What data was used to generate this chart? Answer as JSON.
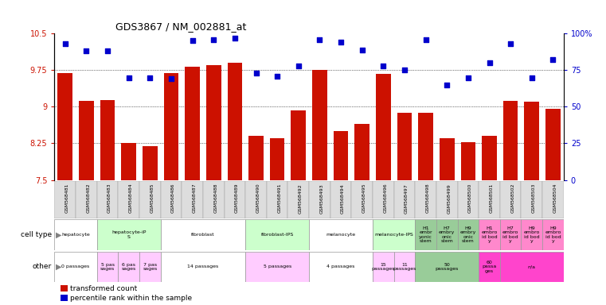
{
  "title": "GDS3867 / NM_002881_at",
  "gsm_labels": [
    "GSM568481",
    "GSM568482",
    "GSM568483",
    "GSM568484",
    "GSM568485",
    "GSM568486",
    "GSM568487",
    "GSM568488",
    "GSM568489",
    "GSM568490",
    "GSM568491",
    "GSM568492",
    "GSM568493",
    "GSM568494",
    "GSM568495",
    "GSM568496",
    "GSM568497",
    "GSM568498",
    "GSM568499",
    "GSM568500",
    "GSM568501",
    "GSM568502",
    "GSM568503",
    "GSM568504"
  ],
  "bar_values": [
    9.69,
    9.12,
    9.14,
    8.26,
    8.19,
    9.69,
    9.82,
    9.86,
    9.9,
    8.4,
    8.36,
    8.93,
    9.75,
    8.5,
    8.65,
    9.68,
    8.87,
    8.87,
    8.36,
    8.28,
    8.4,
    9.12,
    9.11,
    8.95
  ],
  "dot_values_pct": [
    93,
    88,
    88,
    70,
    70,
    69,
    95,
    96,
    97,
    73,
    71,
    78,
    96,
    94,
    89,
    78,
    75,
    96,
    65,
    70,
    80,
    93,
    70,
    82
  ],
  "ylim": [
    7.5,
    10.5
  ],
  "yticks": [
    7.5,
    8.25,
    9.0,
    9.75,
    10.5
  ],
  "ytick_labels": [
    "7.5",
    "8.25",
    "9",
    "9.75",
    "10.5"
  ],
  "y2ticks": [
    0,
    25,
    50,
    75,
    100
  ],
  "y2tick_labels": [
    "0",
    "25",
    "50",
    "75",
    "100%"
  ],
  "bar_color": "#cc1100",
  "dot_color": "#0000cc",
  "cell_groups": [
    {
      "s": 0,
      "e": 1,
      "color": "#ffffff",
      "label": "hepatocyte"
    },
    {
      "s": 2,
      "e": 4,
      "color": "#ccffcc",
      "label": "hepatocyte-iP\nS"
    },
    {
      "s": 5,
      "e": 8,
      "color": "#ffffff",
      "label": "fibroblast"
    },
    {
      "s": 9,
      "e": 11,
      "color": "#ccffcc",
      "label": "fibroblast-IPS"
    },
    {
      "s": 12,
      "e": 14,
      "color": "#ffffff",
      "label": "melanocyte"
    },
    {
      "s": 15,
      "e": 16,
      "color": "#ccffcc",
      "label": "melanocyte-IPS"
    },
    {
      "s": 17,
      "e": 17,
      "color": "#99cc99",
      "label": "H1\nembr\nyonic\nstem"
    },
    {
      "s": 18,
      "e": 18,
      "color": "#99cc99",
      "label": "H7\nembry\nonic\nstem"
    },
    {
      "s": 19,
      "e": 19,
      "color": "#99cc99",
      "label": "H9\nembry\nonic\nstem"
    },
    {
      "s": 20,
      "e": 20,
      "color": "#ff88cc",
      "label": "H1\nembro\nid bod\ny"
    },
    {
      "s": 21,
      "e": 21,
      "color": "#ff88cc",
      "label": "H7\nembro\nid bod\ny"
    },
    {
      "s": 22,
      "e": 22,
      "color": "#ff88cc",
      "label": "H9\nembro\nid bod\ny"
    },
    {
      "s": 23,
      "e": 23,
      "color": "#ff88cc",
      "label": "H9\nembro\nid bod\ny"
    }
  ],
  "other_groups": [
    {
      "s": 0,
      "e": 1,
      "color": "#ffffff",
      "label": "0 passages"
    },
    {
      "s": 2,
      "e": 2,
      "color": "#ffccff",
      "label": "5 pas\nsages"
    },
    {
      "s": 3,
      "e": 3,
      "color": "#ffccff",
      "label": "6 pas\nsages"
    },
    {
      "s": 4,
      "e": 4,
      "color": "#ffccff",
      "label": "7 pas\nsages"
    },
    {
      "s": 5,
      "e": 8,
      "color": "#ffffff",
      "label": "14 passages"
    },
    {
      "s": 9,
      "e": 11,
      "color": "#ffccff",
      "label": "5 passages"
    },
    {
      "s": 12,
      "e": 14,
      "color": "#ffffff",
      "label": "4 passages"
    },
    {
      "s": 15,
      "e": 15,
      "color": "#ffccff",
      "label": "15\npassages"
    },
    {
      "s": 16,
      "e": 16,
      "color": "#ffccff",
      "label": "11\npassages"
    },
    {
      "s": 17,
      "e": 19,
      "color": "#99cc99",
      "label": "50\npassages"
    },
    {
      "s": 20,
      "e": 20,
      "color": "#ff44cc",
      "label": "60\npassa\nges"
    },
    {
      "s": 21,
      "e": 23,
      "color": "#ff44cc",
      "label": "n/a"
    }
  ]
}
